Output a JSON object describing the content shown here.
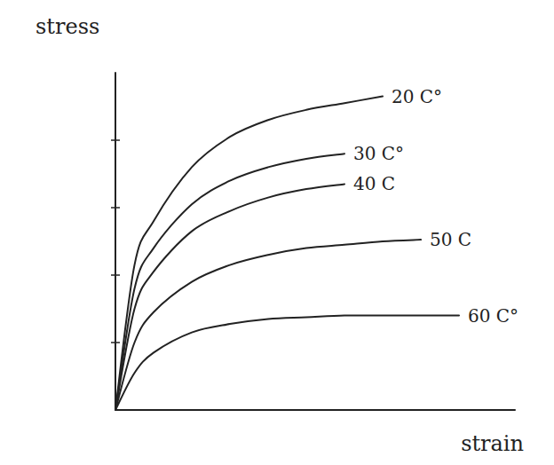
{
  "chart_data": {
    "type": "line",
    "y_label": "stress",
    "x_label": "strain",
    "x": [
      0,
      0.5,
      1,
      2,
      3,
      4,
      5,
      6,
      7,
      8,
      9
    ],
    "series": [
      {
        "name": "20 C°",
        "color": "#222222",
        "values": [
          0,
          4.3,
          5.6,
          7.2,
          8.1,
          8.6,
          8.9,
          9.1,
          9.3,
          null,
          null
        ]
      },
      {
        "name": "30 C°",
        "color": "#222222",
        "values": [
          0,
          3.6,
          4.8,
          6.1,
          6.8,
          7.2,
          7.45,
          7.6,
          null,
          null,
          null
        ]
      },
      {
        "name": "40 C",
        "color": "#222222",
        "values": [
          0,
          3.0,
          4.1,
          5.3,
          5.9,
          6.3,
          6.55,
          6.7,
          null,
          null,
          null
        ]
      },
      {
        "name": "50 C",
        "color": "#222222",
        "values": [
          0,
          2.0,
          2.9,
          3.8,
          4.3,
          4.6,
          4.8,
          4.9,
          5.0,
          5.05,
          null
        ]
      },
      {
        "name": "60 C°",
        "color": "#222222",
        "values": [
          0,
          1.1,
          1.7,
          2.3,
          2.55,
          2.7,
          2.75,
          2.8,
          2.8,
          2.8,
          2.8
        ]
      }
    ],
    "xlim": [
      0,
      10
    ],
    "ylim": [
      0,
      10
    ],
    "yticks": [
      2,
      4,
      6,
      8
    ],
    "tick_labels": false,
    "grid": false
  }
}
